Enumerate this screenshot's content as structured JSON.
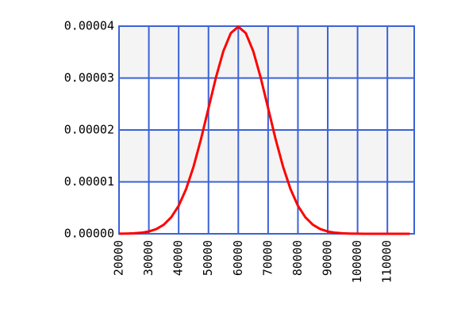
{
  "chart_data": {
    "type": "line",
    "x": [
      20000,
      22500,
      25000,
      27500,
      30000,
      32500,
      35000,
      37500,
      40000,
      42500,
      45000,
      47500,
      50000,
      52500,
      55000,
      57500,
      60000,
      62500,
      65000,
      67500,
      70000,
      72500,
      75000,
      77500,
      80000,
      82500,
      85000,
      87500,
      90000,
      92500,
      95000,
      97500,
      100000,
      102500,
      105000,
      107500,
      110000,
      112500,
      115000,
      117500
    ],
    "series": [
      {
        "color": "#ff0000",
        "values": [
          1.34e-08,
          3.53e-08,
          8.73e-08,
          2.03e-07,
          4.43e-07,
          9.09e-07,
          1.753e-06,
          3.174e-06,
          5.399e-06,
          8.628e-06,
          1.2952e-05,
          1.8265e-05,
          2.4197e-05,
          3.0114e-05,
          3.5207e-05,
          3.8667e-05,
          3.9894e-05,
          3.8667e-05,
          3.5207e-05,
          3.0114e-05,
          2.4197e-05,
          1.8265e-05,
          1.2952e-05,
          8.628e-06,
          5.399e-06,
          3.174e-06,
          1.753e-06,
          9.09e-07,
          4.43e-07,
          2.03e-07,
          8.73e-08,
          3.53e-08,
          1.34e-08,
          4.8e-09,
          1.6e-09,
          0,
          0,
          0,
          0,
          0
        ]
      }
    ],
    "xlim": [
      20000,
      119000
    ],
    "xticks": [
      20000,
      30000,
      40000,
      50000,
      60000,
      70000,
      80000,
      90000,
      100000,
      110000
    ],
    "ylim": [
      0,
      4e-05
    ],
    "yticks": [
      {
        "value": 0,
        "label": "0.00000"
      },
      1e-05,
      2e-05,
      3e-05,
      4e-05
    ],
    "grid": true,
    "grid_color": "#3b62d6",
    "band_color": "#f4f4f4"
  }
}
